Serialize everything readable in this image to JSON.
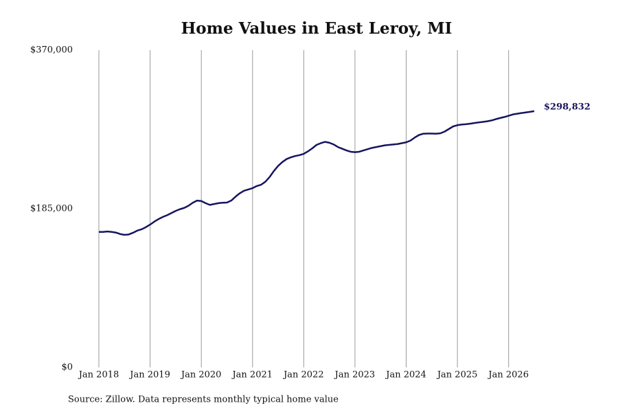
{
  "chart_data": {
    "type": "line",
    "title": "Home Values in East Leroy, MI",
    "source": "Source: Zillow. Data represents monthly typical home value",
    "x": [
      "2018-01",
      "2018-02",
      "2018-03",
      "2018-04",
      "2018-05",
      "2018-06",
      "2018-07",
      "2018-08",
      "2018-09",
      "2018-10",
      "2018-11",
      "2018-12",
      "2019-01",
      "2019-02",
      "2019-03",
      "2019-04",
      "2019-05",
      "2019-06",
      "2019-07",
      "2019-08",
      "2019-09",
      "2019-10",
      "2019-11",
      "2019-12",
      "2020-01",
      "2020-02",
      "2020-03",
      "2020-04",
      "2020-05",
      "2020-06",
      "2020-07",
      "2020-08",
      "2020-09",
      "2020-10",
      "2020-11",
      "2020-12",
      "2021-01",
      "2021-02",
      "2021-03",
      "2021-04",
      "2021-05",
      "2021-06",
      "2021-07",
      "2021-08",
      "2021-09",
      "2021-10",
      "2021-11",
      "2021-12",
      "2022-01",
      "2022-02",
      "2022-03",
      "2022-04",
      "2022-05",
      "2022-06",
      "2022-07",
      "2022-08",
      "2022-09",
      "2022-10",
      "2022-11",
      "2022-12",
      "2023-01",
      "2023-02",
      "2023-03",
      "2023-04",
      "2023-05",
      "2023-06",
      "2023-07",
      "2023-08",
      "2023-09",
      "2023-10",
      "2023-11",
      "2023-12",
      "2024-01",
      "2024-02",
      "2024-03",
      "2024-04",
      "2024-05",
      "2024-06",
      "2024-07",
      "2024-08",
      "2024-09",
      "2024-10",
      "2024-11",
      "2024-12",
      "2025-01",
      "2025-02",
      "2025-03",
      "2025-04",
      "2025-05",
      "2025-06",
      "2025-07",
      "2025-08",
      "2025-09",
      "2025-10",
      "2025-11",
      "2025-12",
      "2026-01",
      "2026-02",
      "2026-03",
      "2026-04",
      "2026-05",
      "2026-06",
      "2026-07"
    ],
    "values": [
      158000,
      158000,
      158500,
      158000,
      157200,
      155500,
      154600,
      155000,
      157000,
      159500,
      161000,
      163500,
      166500,
      170000,
      173000,
      175500,
      177500,
      180000,
      182500,
      184500,
      186000,
      188500,
      192000,
      194500,
      194000,
      191500,
      189500,
      190500,
      191500,
      192000,
      192200,
      194500,
      199000,
      203000,
      206000,
      207500,
      209000,
      211500,
      213000,
      216500,
      222000,
      229000,
      235000,
      239500,
      243000,
      245000,
      246500,
      247500,
      249000,
      252000,
      255500,
      259500,
      261500,
      263000,
      262000,
      260000,
      257000,
      255000,
      253000,
      251500,
      251000,
      251500,
      253000,
      254500,
      256000,
      257000,
      258000,
      259000,
      259500,
      260000,
      260500,
      261500,
      262500,
      264500,
      268000,
      271000,
      272500,
      272700,
      272700,
      272500,
      273000,
      275000,
      278000,
      281000,
      282500,
      283200,
      283600,
      284200,
      285000,
      285700,
      286300,
      287000,
      288000,
      289500,
      290800,
      292000,
      293500,
      295000,
      295800,
      296600,
      297300,
      298000,
      298832
    ],
    "value_labels": [
      null,
      null,
      null,
      null,
      null,
      null,
      null,
      null,
      null,
      null,
      null,
      null,
      null,
      null,
      null,
      null,
      null,
      null,
      null,
      null,
      null,
      null,
      null,
      null,
      null,
      null,
      null,
      null,
      null,
      null,
      null,
      null,
      null,
      null,
      null,
      null,
      null,
      null,
      null,
      null,
      null,
      null,
      null,
      null,
      null,
      null,
      null,
      null,
      null,
      null,
      null,
      null,
      null,
      null,
      null,
      null,
      null,
      null,
      null,
      null,
      null,
      null,
      null,
      null,
      null,
      null,
      null,
      null,
      null,
      null,
      null,
      null,
      null,
      null,
      null,
      null,
      null,
      null,
      null,
      null,
      null,
      null,
      null,
      null,
      null,
      null,
      null,
      null,
      null,
      null,
      null,
      null,
      null,
      null,
      null,
      null,
      null,
      null,
      null,
      null,
      null,
      null,
      "$298,832"
    ],
    "color": "#15155e",
    "xlim": [
      "2018-01",
      "2026-07"
    ],
    "xticks": [
      {
        "value": "2018-01",
        "label": "Jan 2018"
      },
      {
        "value": "2019-01",
        "label": "Jan 2019"
      },
      {
        "value": "2020-01",
        "label": "Jan 2020"
      },
      {
        "value": "2021-01",
        "label": "Jan 2021"
      },
      {
        "value": "2022-01",
        "label": "Jan 2022"
      },
      {
        "value": "2023-01",
        "label": "Jan 2023"
      },
      {
        "value": "2024-01",
        "label": "Jan 2024"
      },
      {
        "value": "2025-01",
        "label": "Jan 2025"
      },
      {
        "value": "2026-01",
        "label": "Jan 2026"
      }
    ],
    "ylim": [
      0,
      370000
    ],
    "yticks": [
      {
        "value": 0,
        "label": "$0"
      },
      {
        "value": 185000,
        "label": "$185,000"
      },
      {
        "value": 370000,
        "label": "$370,000"
      }
    ],
    "grid": "x"
  }
}
